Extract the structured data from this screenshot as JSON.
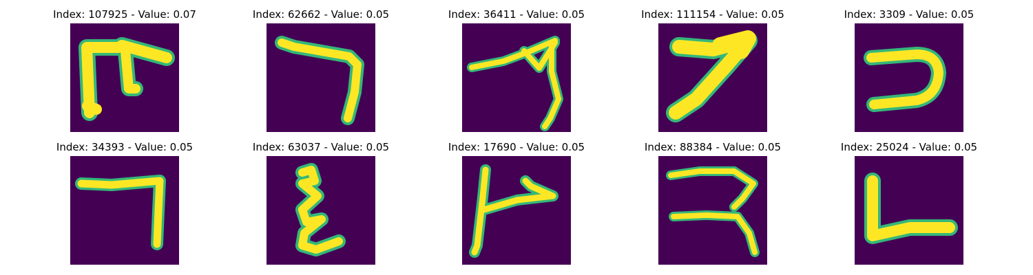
{
  "colors": {
    "background": "#440154",
    "ink_core": "#fde725",
    "ink_edge": "#35b779"
  },
  "panels": [
    {
      "title": "Index: 107925 - Value: 0.07",
      "glyph_icon": "handwritten-glyph-icon"
    },
    {
      "title": "Index: 62662 - Value: 0.05",
      "glyph_icon": "handwritten-glyph-icon"
    },
    {
      "title": "Index: 36411 - Value: 0.05",
      "glyph_icon": "handwritten-glyph-icon"
    },
    {
      "title": "Index: 111154 - Value: 0.05",
      "glyph_icon": "handwritten-glyph-icon"
    },
    {
      "title": "Index: 3309 - Value: 0.05",
      "glyph_icon": "handwritten-glyph-icon"
    },
    {
      "title": "Index: 34393 - Value: 0.05",
      "glyph_icon": "handwritten-glyph-icon"
    },
    {
      "title": "Index: 63037 - Value: 0.05",
      "glyph_icon": "handwritten-glyph-icon"
    },
    {
      "title": "Index: 17690 - Value: 0.05",
      "glyph_icon": "handwritten-glyph-icon"
    },
    {
      "title": "Index: 88384 - Value: 0.05",
      "glyph_icon": "handwritten-glyph-icon"
    },
    {
      "title": "Index: 25024 - Value: 0.05",
      "glyph_icon": "handwritten-glyph-icon"
    }
  ]
}
